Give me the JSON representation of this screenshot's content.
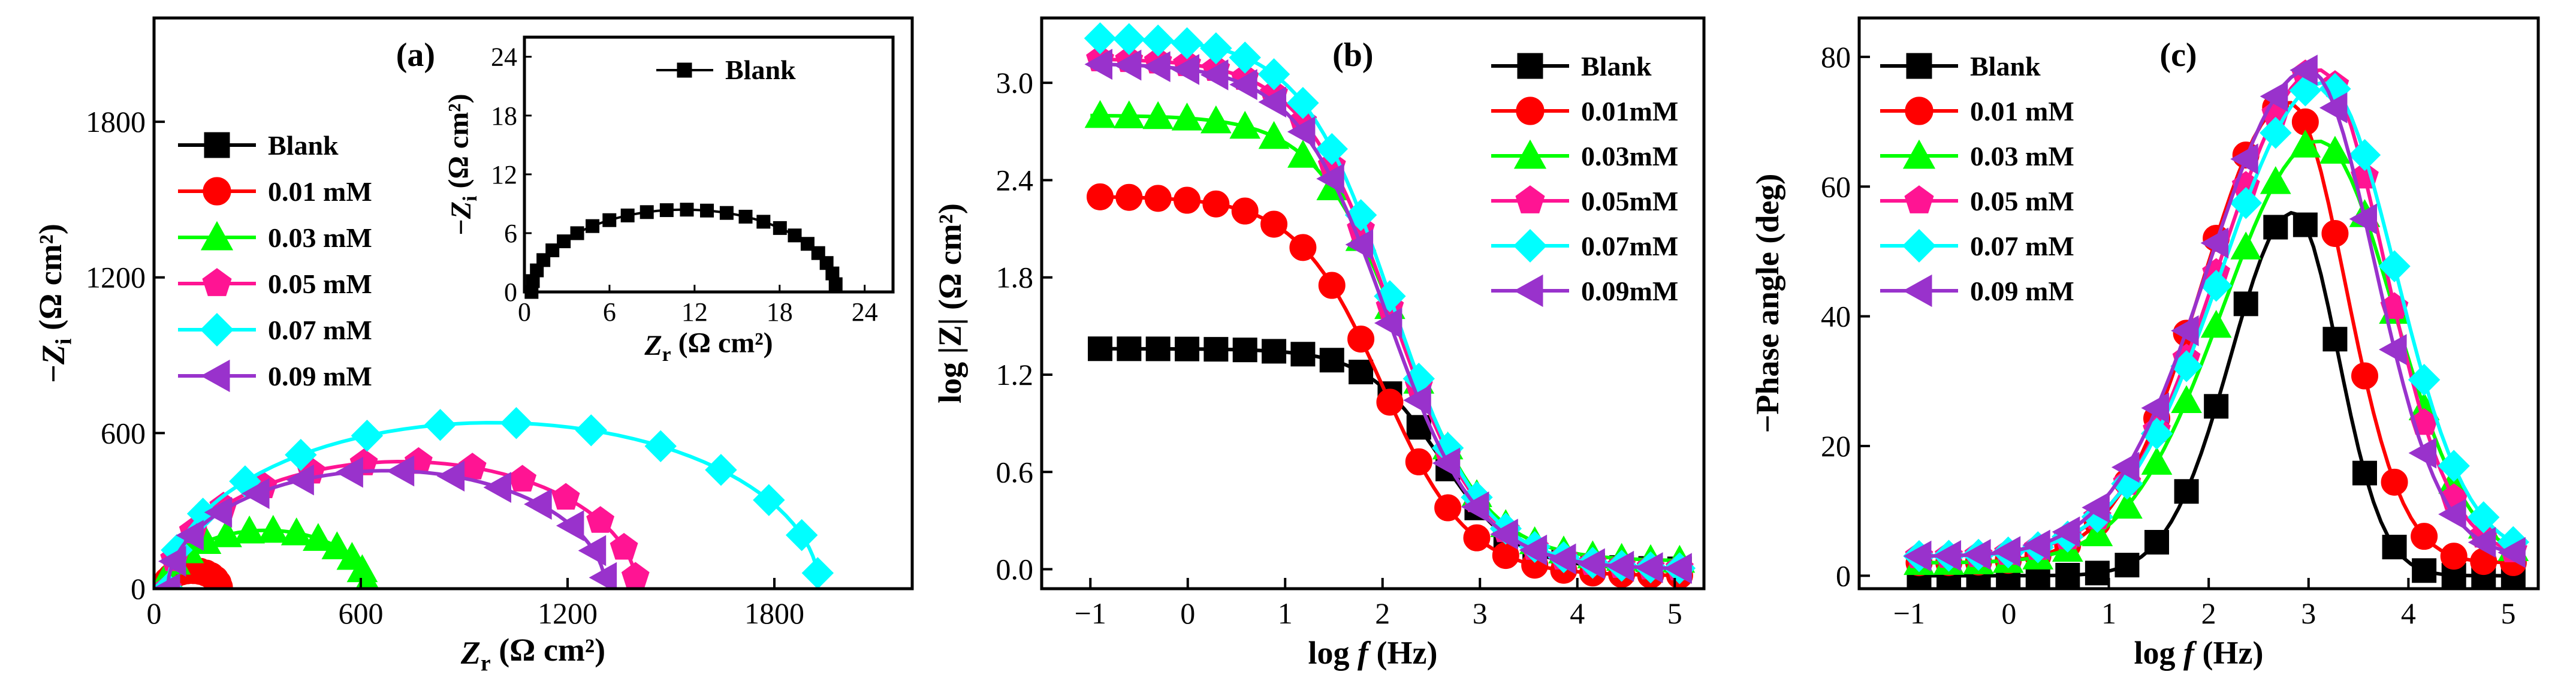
{
  "colors": {
    "Blank": "#000000",
    "0.01": "#ff0000",
    "0.03": "#00ff00",
    "0.05": "#ff1493",
    "0.07": "#00ffff",
    "0.09": "#9932cc"
  },
  "chart_data": [
    {
      "id": "a",
      "type": "scatter",
      "panel_label": "(a)",
      "title": "",
      "xlabel": "Z_r (Ω cm²)",
      "ylabel": "−Z_i (Ω cm²)",
      "xlim": [
        0,
        2200
      ],
      "ylim": [
        0,
        2200
      ],
      "xticks": [
        "0",
        "600",
        "1200",
        "1800"
      ],
      "xtick_values": [
        0,
        600,
        1200,
        1800
      ],
      "yticks": [
        "0",
        "600",
        "1200",
        "1800"
      ],
      "ytick_values": [
        0,
        600,
        1200,
        1800
      ],
      "legend": [
        "Blank",
        "0.01 mM",
        "0.03 mM",
        "0.05 mM",
        "0.07 mM",
        "0.09 mM"
      ],
      "series": [
        {
          "name": "Blank",
          "color_key": "Blank",
          "marker": "square",
          "semicircle": {
            "r0": 2,
            "d": 20,
            "peak": 8.5
          }
        },
        {
          "name": "0.01 mM",
          "color_key": "0.01",
          "marker": "circle",
          "semicircle": {
            "r0": 30,
            "d": 160,
            "peak": 70
          }
        },
        {
          "name": "0.03 mM",
          "color_key": "0.03",
          "marker": "triangle-up",
          "semicircle": {
            "r0": 30,
            "d": 590,
            "peak": 225
          }
        },
        {
          "name": "0.05 mM",
          "color_key": "0.05",
          "marker": "pentagon",
          "semicircle": {
            "r0": 40,
            "d": 1360,
            "peak": 490
          }
        },
        {
          "name": "0.07 mM",
          "color_key": "0.07",
          "marker": "diamond",
          "semicircle": {
            "r0": 40,
            "d": 1890,
            "peak": 640
          }
        },
        {
          "name": "0.09 mM",
          "color_key": "0.09",
          "marker": "triangle-left",
          "semicircle": {
            "r0": 40,
            "d": 1270,
            "peak": 455
          }
        }
      ],
      "inset": {
        "xlabel": "Z_r (Ω cm²)",
        "ylabel": "−Z_i (Ω cm²)",
        "xlim": [
          0,
          26
        ],
        "ylim": [
          0,
          26
        ],
        "xticks": [
          "0",
          "6",
          "12",
          "18",
          "24"
        ],
        "xtick_values": [
          0,
          6,
          12,
          18,
          24
        ],
        "yticks": [
          "0",
          "6",
          "12",
          "18",
          "24"
        ],
        "ytick_values": [
          0,
          6,
          12,
          18,
          24
        ],
        "legend": [
          "Blank"
        ],
        "series": [
          {
            "name": "Blank",
            "color_key": "Blank",
            "marker": "square",
            "semicircle": {
              "r0": 0.5,
              "d": 21.5,
              "peak": 8.4
            }
          }
        ]
      }
    },
    {
      "id": "b",
      "type": "line",
      "panel_label": "(b)",
      "title": "",
      "xlabel": "log f (Hz)",
      "ylabel": "log |Z| (Ω cm²)",
      "xlim": [
        -1.5,
        5.3
      ],
      "ylim": [
        -0.12,
        3.4
      ],
      "xticks": [
        "−1",
        "0",
        "1",
        "2",
        "3",
        "4",
        "5"
      ],
      "xtick_values": [
        -1,
        0,
        1,
        2,
        3,
        4,
        5
      ],
      "yticks": [
        "0.0",
        "0.6",
        "1.2",
        "1.8",
        "2.4",
        "3.0"
      ],
      "ytick_values": [
        0,
        0.6,
        1.2,
        1.8,
        2.4,
        3.0
      ],
      "legend": [
        "Blank",
        "0.01mM",
        "0.03mM",
        "0.05mM",
        "0.07mM",
        "0.09mM"
      ],
      "series": [
        {
          "name": "Blank",
          "color_key": "Blank",
          "marker": "square",
          "bode": {
            "hi": 1.36,
            "lo": 0.0,
            "fc": 2.6,
            "w": 0.7
          }
        },
        {
          "name": "0.01mM",
          "color_key": "0.01",
          "marker": "circle",
          "bode": {
            "hi": 2.3,
            "lo": -0.04,
            "fc": 2.0,
            "w": 0.8
          }
        },
        {
          "name": "0.03mM",
          "color_key": "0.03",
          "marker": "triangle-up",
          "bode": {
            "hi": 2.8,
            "lo": 0.05,
            "fc": 2.2,
            "w": 0.8
          }
        },
        {
          "name": "0.05mM",
          "color_key": "0.05",
          "marker": "pentagon",
          "bode": {
            "hi": 3.15,
            "lo": 0.0,
            "fc": 2.1,
            "w": 0.85
          }
        },
        {
          "name": "0.07mM",
          "color_key": "0.07",
          "marker": "diamond",
          "bode": {
            "hi": 3.28,
            "lo": 0.0,
            "fc": 2.1,
            "w": 0.85
          }
        },
        {
          "name": "0.09mM",
          "color_key": "0.09",
          "marker": "triangle-left",
          "bode": {
            "hi": 3.12,
            "lo": 0.0,
            "fc": 2.05,
            "w": 0.85
          }
        }
      ]
    },
    {
      "id": "c",
      "type": "line",
      "panel_label": "(c)",
      "title": "",
      "xlabel": "log f (Hz)",
      "ylabel": "−Phase angle (deg)",
      "xlim": [
        -1.5,
        5.3
      ],
      "ylim": [
        -2,
        86
      ],
      "xticks": [
        "−1",
        "0",
        "1",
        "2",
        "3",
        "4",
        "5"
      ],
      "xtick_values": [
        -1,
        0,
        1,
        2,
        3,
        4,
        5
      ],
      "yticks": [
        "0",
        "20",
        "40",
        "60",
        "80"
      ],
      "ytick_values": [
        0,
        20,
        40,
        60,
        80
      ],
      "legend": [
        "Blank",
        "0.01 mM",
        "0.03 mM",
        "0.05 mM",
        "0.07 mM",
        "0.09 mM"
      ],
      "series": [
        {
          "name": "Blank",
          "color_key": "Blank",
          "marker": "square",
          "phase": {
            "peak": 56,
            "center": 2.85,
            "wl": 1.05,
            "wr": 0.75,
            "base": 0
          }
        },
        {
          "name": "0.01 mM",
          "color_key": "0.01",
          "marker": "circle",
          "phase": {
            "peak": 73,
            "center": 2.8,
            "wl": 1.45,
            "wr": 0.95,
            "base": 2
          }
        },
        {
          "name": "0.03 mM",
          "color_key": "0.03",
          "marker": "triangle-up",
          "phase": {
            "peak": 67,
            "center": 3.1,
            "wl": 1.6,
            "wr": 1.25,
            "base": 2
          }
        },
        {
          "name": "0.05 mM",
          "color_key": "0.05",
          "marker": "pentagon",
          "phase": {
            "peak": 78,
            "center": 3.1,
            "wl": 1.65,
            "wr": 1.1,
            "base": 3
          }
        },
        {
          "name": "0.07 mM",
          "color_key": "0.07",
          "marker": "diamond",
          "phase": {
            "peak": 76,
            "center": 3.15,
            "wl": 1.7,
            "wr": 1.2,
            "base": 3
          }
        },
        {
          "name": "0.09 mM",
          "color_key": "0.09",
          "marker": "triangle-left",
          "phase": {
            "peak": 78,
            "center": 3.0,
            "wl": 1.65,
            "wr": 1.1,
            "base": 3
          }
        }
      ]
    }
  ]
}
